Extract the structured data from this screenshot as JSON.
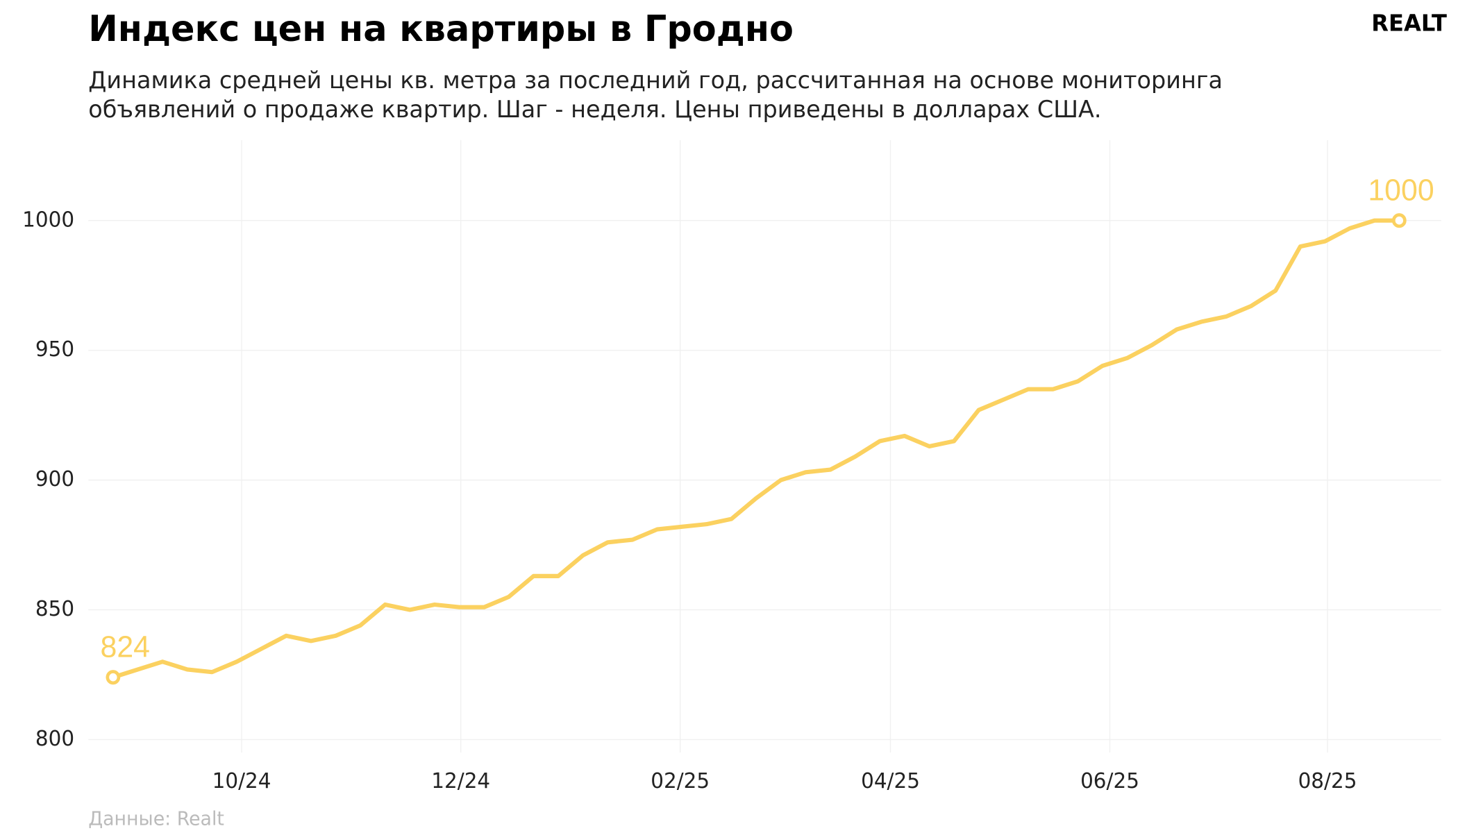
{
  "chart_data": {
    "type": "line",
    "title": "Индекс цен на квартиры в Гродно",
    "subtitle": [
      "Динамика средней цены кв. метра за последний год, рассчитанная на основе мониторинга",
      "объявлений о продаже квартир. Шаг - неделя. Цены приведены в долларах США."
    ],
    "source": "Данные: Realt",
    "logo": "REALT",
    "x": [
      0,
      1,
      2,
      3,
      4,
      5,
      6,
      7,
      8,
      9,
      10,
      11,
      12,
      13,
      14,
      15,
      16,
      17,
      18,
      19,
      20,
      21,
      22,
      23,
      24,
      25,
      26,
      27,
      28,
      29,
      30,
      31,
      32,
      33,
      34,
      35,
      36,
      37,
      38,
      39,
      40,
      41,
      42,
      43,
      44,
      45,
      46,
      47,
      48,
      49,
      50,
      51,
      52
    ],
    "series": [
      {
        "color": "#fbd160",
        "values": [
          824,
          827,
          830,
          827,
          826,
          830,
          835,
          840,
          838,
          840,
          844,
          852,
          850,
          852,
          851,
          851,
          855,
          863,
          863,
          871,
          876,
          877,
          881,
          882,
          883,
          885,
          893,
          900,
          903,
          904,
          909,
          915,
          917,
          913,
          915,
          927,
          931,
          935,
          935,
          938,
          944,
          947,
          952,
          958,
          961,
          963,
          967,
          973,
          990,
          992,
          997,
          1000,
          1000
        ]
      }
    ],
    "xlim": [
      -1,
      53.7
    ],
    "xticks": [
      {
        "value": 5.2,
        "label": "10/24"
      },
      {
        "value": 14.06,
        "label": "12/24"
      },
      {
        "value": 22.93,
        "label": "02/25"
      },
      {
        "value": 31.43,
        "label": "04/25"
      },
      {
        "value": 40.3,
        "label": "06/25"
      },
      {
        "value": 49.1,
        "label": "08/25"
      }
    ],
    "ylim": [
      795,
      1031
    ],
    "yticks": [
      800,
      850,
      900,
      950,
      1000
    ],
    "grid": true
  }
}
